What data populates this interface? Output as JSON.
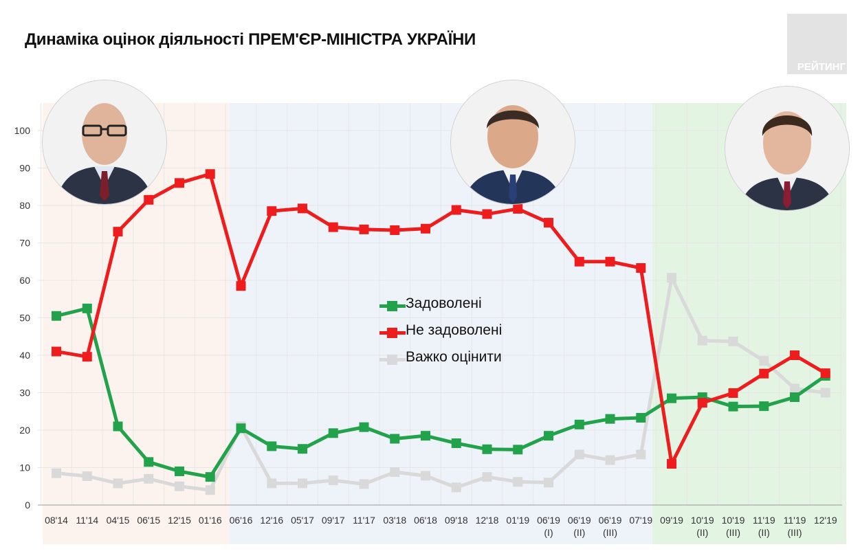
{
  "title": "Динаміка оцінок діяльності ПРЕМ'ЄР-МІНІСТРА УКРАЇНИ",
  "logo": {
    "text": "РЕЙТИНГ"
  },
  "portraits": [
    {
      "name": "portrait-left",
      "icon": "person-photo"
    },
    {
      "name": "portrait-center",
      "icon": "person-photo"
    },
    {
      "name": "portrait-right",
      "icon": "person-photo"
    }
  ],
  "colors": {
    "satisfied": "#21a24b",
    "dissatisfied": "#ee1c1c",
    "hard": "#d9d9d9",
    "period1": "#fcf3ef",
    "period2": "#eef2f9",
    "period3": "#e3f4e3"
  },
  "chart_data": {
    "type": "line",
    "title": "Динаміка оцінок діяльності ПРЕМ'ЄР-МІНІСТРА УКРАЇНИ",
    "categories": [
      [
        "08'14"
      ],
      [
        "11'14"
      ],
      [
        "04'15"
      ],
      [
        "06'15"
      ],
      [
        "12'15"
      ],
      [
        "01'16"
      ],
      [
        "06'16"
      ],
      [
        "12'16"
      ],
      [
        "05'17"
      ],
      [
        "09'17"
      ],
      [
        "11'17"
      ],
      [
        "03'18"
      ],
      [
        "06'18"
      ],
      [
        "09'18"
      ],
      [
        "12'18"
      ],
      [
        "01'19"
      ],
      [
        "06'19",
        "(I)"
      ],
      [
        "06'19",
        "(II)"
      ],
      [
        "06'19",
        "(III)"
      ],
      [
        "07'19"
      ],
      [
        "09'19"
      ],
      [
        "10'19",
        "(II)"
      ],
      [
        "10'19",
        "(III)"
      ],
      [
        "11'19",
        "(II)"
      ],
      [
        "11'19",
        "(III)"
      ],
      [
        "12'19"
      ]
    ],
    "yticks": [
      0,
      10,
      20,
      30,
      40,
      50,
      60,
      70,
      80,
      90,
      100
    ],
    "ylim": [
      0,
      100
    ],
    "grid": true,
    "legend_position": "center",
    "series": [
      {
        "name": "Задоволені",
        "color": "#21a24b",
        "values": [
          50.5,
          52.5,
          21,
          11.5,
          9,
          7.5,
          20.5,
          15.7,
          15,
          19.2,
          20.8,
          17.7,
          18.5,
          16.5,
          14.9,
          14.8,
          18.5,
          21.5,
          23,
          23.3,
          28.5,
          28.8,
          26.3,
          26.4,
          28.8,
          34.5
        ]
      },
      {
        "name": "Не задоволені",
        "color": "#ee1c1c",
        "values": [
          41,
          39.6,
          73,
          81.5,
          86,
          88.4,
          58.5,
          78.5,
          79.2,
          74.2,
          73.6,
          73.4,
          73.8,
          78.8,
          77.7,
          79.1,
          75.4,
          65,
          65,
          63.3,
          11,
          27.3,
          29.9,
          35.1,
          40,
          35.2
        ]
      },
      {
        "name": "Важко оцінити",
        "color": "#d9d9d9",
        "values": [
          8.5,
          7.7,
          5.8,
          7,
          5,
          4,
          21,
          5.8,
          5.8,
          6.6,
          5.6,
          8.8,
          7.8,
          4.7,
          7.5,
          6.2,
          6,
          13.5,
          12,
          13.5,
          60.7,
          43.9,
          43.7,
          38.5,
          31.1,
          30
        ]
      }
    ]
  }
}
